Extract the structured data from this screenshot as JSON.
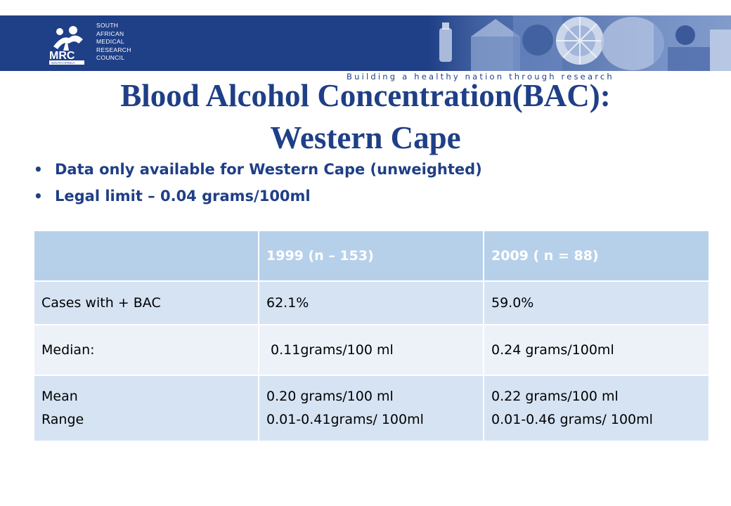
{
  "header": {
    "org_lines": [
      "SOUTH",
      "AFRICAN",
      "MEDICAL",
      "RESEARCH",
      "COUNCIL"
    ],
    "logo_text": "MRC",
    "logo_subtext": "SOUTH AFRICA",
    "tagline": "Building a healthy nation through research",
    "brand_color": "#1f3f86"
  },
  "slide": {
    "title_line1": "Blood Alcohol Concentration(BAC):",
    "title_line2": "Western Cape",
    "bullets": [
      "Data only available for Western Cape (unweighted)",
      "Legal limit – 0.04 grams/100ml"
    ]
  },
  "table": {
    "headers": [
      "",
      "1999 (n – 153)",
      "2009 ( n = 88)"
    ],
    "rows": [
      [
        "Cases with + BAC",
        "62.1%",
        "59.0%"
      ],
      [
        "Median:",
        " 0.11grams/100 ml",
        "0.24 grams/100ml"
      ],
      [
        [
          "Mean",
          "Range"
        ],
        [
          "0.20 grams/100 ml",
          "0.01-0.41grams/ 100ml"
        ],
        [
          "0.22 grams/100 ml",
          "0.01-0.46 grams/ 100ml"
        ]
      ]
    ],
    "header_color": "#b7d0ea",
    "row_color_dark": "#d6e3f3",
    "row_color_light": "#edf2f9"
  }
}
